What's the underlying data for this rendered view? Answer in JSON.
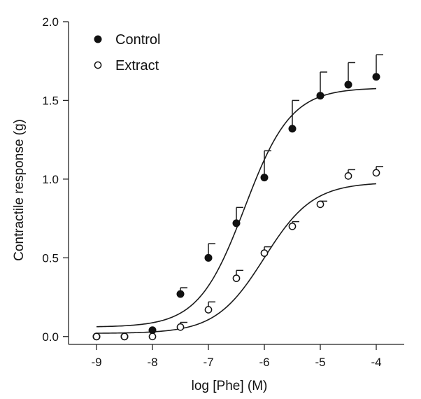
{
  "chart_data": {
    "type": "scatter",
    "title": "",
    "xlabel": "log [Phe] (M)",
    "ylabel": "Contractile response (g)",
    "xlim": [
      -9.5,
      -3.5
    ],
    "ylim": [
      -0.05,
      2.0
    ],
    "x_ticks": [
      -9,
      -8,
      -7,
      -6,
      -5,
      -4
    ],
    "x_tick_labels": [
      "-9",
      "-8",
      "-7",
      "-6",
      "-5",
      "-4"
    ],
    "y_ticks": [
      0.0,
      0.5,
      1.0,
      1.5,
      2.0
    ],
    "y_tick_labels": [
      "0.0",
      "0.5",
      "1.0",
      "1.5",
      "2.0"
    ],
    "grid": false,
    "legend_position": "top-left",
    "series": [
      {
        "name": "Control",
        "marker": "filled-circle",
        "color": "#111111",
        "x": [
          -9,
          -8.5,
          -8,
          -7.5,
          -7,
          -6.5,
          -6,
          -5.5,
          -5,
          -4.5,
          -4
        ],
        "y": [
          0.0,
          0.0,
          0.04,
          0.27,
          0.5,
          0.72,
          1.01,
          1.32,
          1.53,
          1.6,
          1.65
        ],
        "error_upper": [
          0,
          0,
          0,
          0.04,
          0.09,
          0.1,
          0.17,
          0.18,
          0.15,
          0.14,
          0.14
        ],
        "fit": {
          "model": "sigmoid",
          "bottom": 0.06,
          "top": 1.58,
          "logEC50": -6.35,
          "hill": 1.05
        }
      },
      {
        "name": "Extract",
        "marker": "open-circle",
        "color": "#111111",
        "x": [
          -9,
          -8.5,
          -8,
          -7.5,
          -7,
          -6.5,
          -6,
          -5.5,
          -5,
          -4.5,
          -4
        ],
        "y": [
          0.0,
          0.0,
          0.0,
          0.06,
          0.17,
          0.37,
          0.53,
          0.7,
          0.84,
          1.02,
          1.04
        ],
        "error_upper": [
          0,
          0,
          0,
          0.03,
          0.05,
          0.05,
          0.04,
          0.03,
          0.02,
          0.04,
          0.04
        ],
        "fit": {
          "model": "sigmoid",
          "bottom": 0.02,
          "top": 0.98,
          "logEC50": -6.0,
          "hill": 1.0
        }
      }
    ]
  }
}
